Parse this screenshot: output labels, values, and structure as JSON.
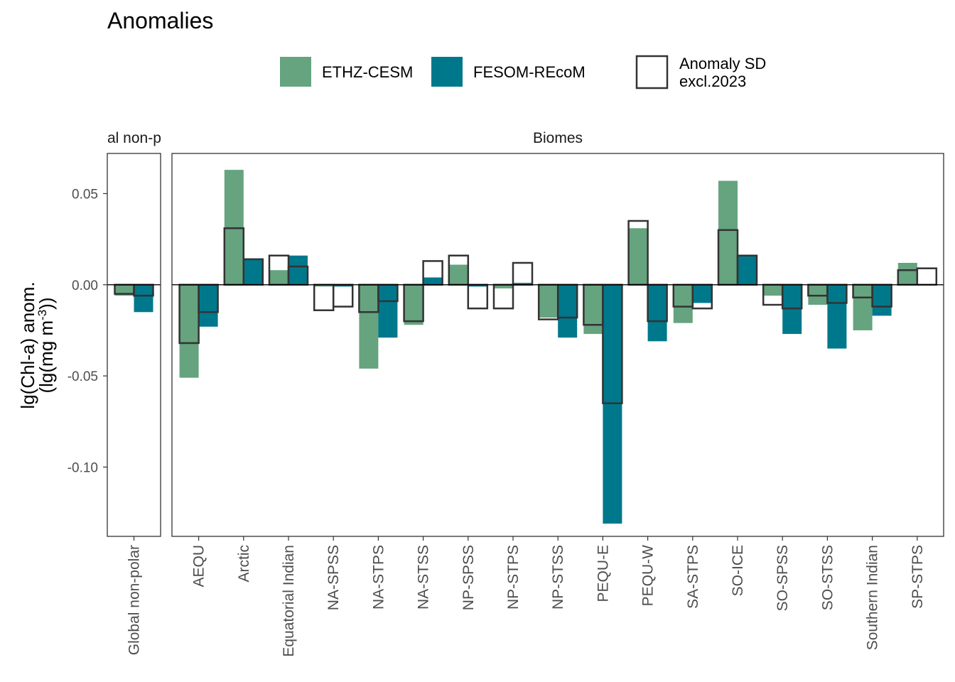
{
  "chart_data": {
    "type": "bar",
    "title": "Anomalies",
    "ylabel_line1": "lg(Chl-a) anom.",
    "ylabel_line2_pre": "(lg(mg m",
    "ylabel_line2_sup": "-3",
    "ylabel_line2_post": "))",
    "ylim": [
      -0.138,
      0.072
    ],
    "yticks": [
      0.05,
      0.0,
      -0.05,
      -0.1
    ],
    "ytick_labels": [
      "0.05",
      "0.00",
      "-0.05",
      "-0.10"
    ],
    "grid": false,
    "legend_position": "top",
    "legend": {
      "items": [
        {
          "label": "ETHZ-CESM",
          "color": "#66a37f"
        },
        {
          "label": "FESOM-REcoM",
          "color": "#00788c"
        }
      ],
      "sd_label_line1": "Anomaly SD",
      "sd_label_line2": "excl.2023"
    },
    "panels": [
      {
        "strip_label": "Global non-polar",
        "strip_label_visible": "al non-p",
        "categories": [
          "Global non-polar"
        ],
        "series": [
          {
            "name": "ETHZ-CESM",
            "values": [
              -0.006
            ]
          },
          {
            "name": "FESOM-REcoM",
            "values": [
              -0.015
            ]
          }
        ],
        "sd": [
          {
            "name": "ETHZ-CESM",
            "values": [
              -0.005
            ]
          },
          {
            "name": "FESOM-REcoM",
            "values": [
              -0.006
            ]
          }
        ]
      },
      {
        "strip_label": "Biomes",
        "categories": [
          "AEQU",
          "Arctic",
          "Equatorial Indian",
          "NA-SPSS",
          "NA-STPS",
          "NA-STSS",
          "NP-SPSS",
          "NP-STPS",
          "NP-STSS",
          "PEQU-E",
          "PEQU-W",
          "SA-STPS",
          "SO-ICE",
          "SO-SPSS",
          "SO-STSS",
          "Southern Indian",
          "SP-STPS"
        ],
        "series": [
          {
            "name": "ETHZ-CESM",
            "values": [
              -0.051,
              0.063,
              0.008,
              -0.001,
              -0.046,
              -0.022,
              0.011,
              -0.002,
              -0.018,
              -0.027,
              0.031,
              -0.021,
              0.057,
              -0.006,
              -0.011,
              -0.025,
              0.012
            ]
          },
          {
            "name": "FESOM-REcoM",
            "values": [
              -0.023,
              0.014,
              0.016,
              -0.001,
              -0.029,
              0.004,
              -0.001,
              0.001,
              -0.029,
              -0.131,
              -0.031,
              -0.01,
              0.016,
              -0.027,
              -0.035,
              -0.017,
              0.0
            ]
          }
        ],
        "sd": [
          {
            "name": "ETHZ-CESM",
            "values": [
              -0.032,
              0.031,
              0.016,
              -0.014,
              -0.015,
              -0.02,
              0.016,
              -0.013,
              -0.019,
              -0.022,
              0.035,
              -0.012,
              0.03,
              -0.011,
              -0.006,
              -0.007,
              0.008
            ]
          },
          {
            "name": "FESOM-REcoM",
            "values": [
              -0.015,
              0.014,
              0.01,
              -0.012,
              -0.009,
              0.013,
              -0.013,
              0.012,
              -0.018,
              -0.065,
              -0.02,
              -0.013,
              0.016,
              -0.013,
              -0.01,
              -0.012,
              0.009
            ]
          }
        ]
      }
    ]
  }
}
